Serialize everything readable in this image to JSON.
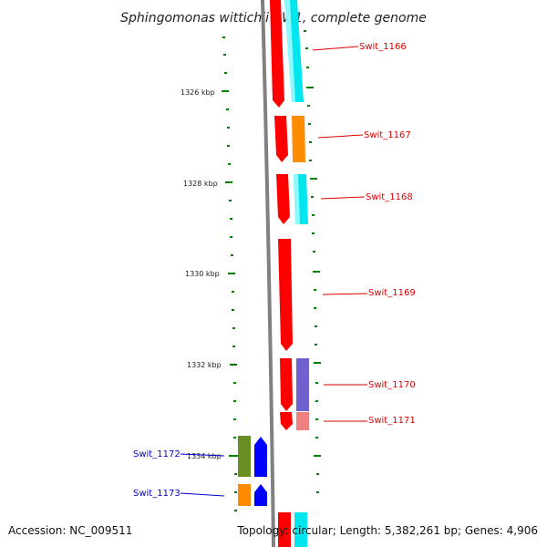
{
  "title": "Sphingomonas wittichii RW1, complete genome",
  "ticks": {
    "t1326": "1326 kbp",
    "t1328": "1328 kbp",
    "t1330": "1330 kbp",
    "t1332": "1332 kbp",
    "t1334": "1334 kbp"
  },
  "genes": {
    "swit_1166": "Swit_1166",
    "swit_1167": "Swit_1167",
    "swit_1168": "Swit_1168",
    "swit_1169": "Swit_1169",
    "swit_1170": "Swit_1170",
    "swit_1171": "Swit_1171",
    "swit_1172": "Swit_1172",
    "swit_1173": "Swit_1173"
  },
  "footer": {
    "accession": "Accession: NC_009511",
    "topology": "Topology: circular; Length: 5,382,261 bp; Genes: 4,906"
  },
  "colors": {
    "gene_red": "#ff0000",
    "cyan": "#00ffff",
    "orange": "#ff8c00",
    "purple": "#7060d0",
    "pink": "#f08080",
    "olive": "#6b8e23",
    "blue": "#0000ff",
    "tick_green": "#008000",
    "backbone": "#808080"
  }
}
